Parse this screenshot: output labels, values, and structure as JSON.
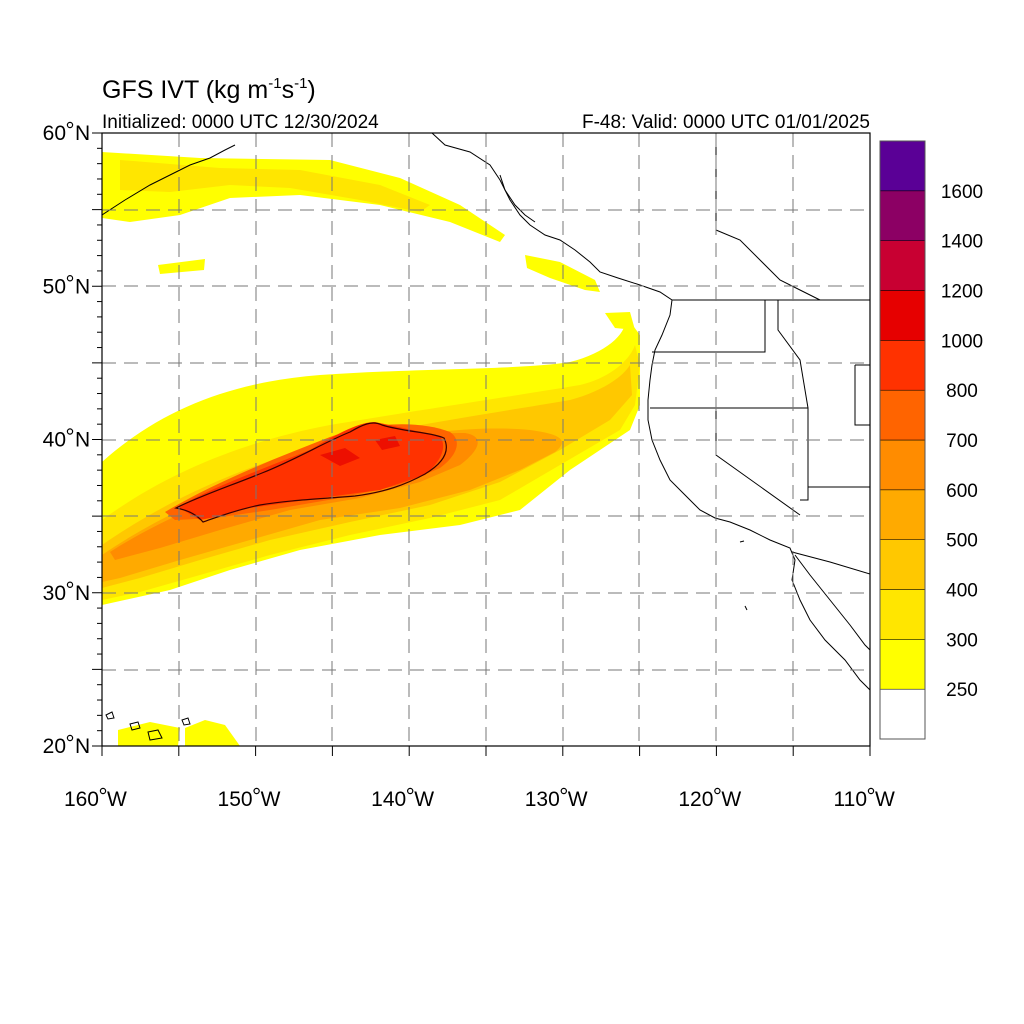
{
  "title": {
    "prefix": "GFS IVT (kg m",
    "sup1": "-1",
    "mid": "s",
    "sup2": "-1",
    "suffix": ")"
  },
  "subtitle_left": "Initialized: 0000 UTC 12/30/2024",
  "subtitle_right": "F-48: Valid: 0000 UTC 01/01/2025",
  "map": {
    "lon_range": [
      -160,
      -110
    ],
    "lat_range": [
      20,
      60
    ],
    "lat_ticks": [
      {
        "value": 60,
        "label": "60",
        "suffix": "N"
      },
      {
        "value": 50,
        "label": "50",
        "suffix": "N"
      },
      {
        "value": 40,
        "label": "40",
        "suffix": "N"
      },
      {
        "value": 30,
        "label": "30",
        "suffix": "N"
      },
      {
        "value": 20,
        "label": "20",
        "suffix": "N"
      }
    ],
    "lon_ticks": [
      {
        "value": -160,
        "label": "160",
        "suffix": "W"
      },
      {
        "value": -150,
        "label": "150",
        "suffix": "W"
      },
      {
        "value": -140,
        "label": "140",
        "suffix": "W"
      },
      {
        "value": -130,
        "label": "130",
        "suffix": "W"
      },
      {
        "value": -120,
        "label": "120",
        "suffix": "W"
      },
      {
        "value": -110,
        "label": "110",
        "suffix": "W"
      }
    ],
    "grid_spacing_deg": 5,
    "grid_style": "dashed"
  },
  "colorbar": {
    "labels": [
      "1600",
      "1400",
      "1200",
      "1000",
      "800",
      "700",
      "600",
      "500",
      "400",
      "300",
      "250"
    ],
    "colors": [
      "#ffffff",
      "#ffff00",
      "#ffe600",
      "#ffc800",
      "#ffaa00",
      "#ff8c00",
      "#ff6400",
      "#ff3200",
      "#e60000",
      "#c80032",
      "#8c0064",
      "#5a0096"
    ]
  }
}
